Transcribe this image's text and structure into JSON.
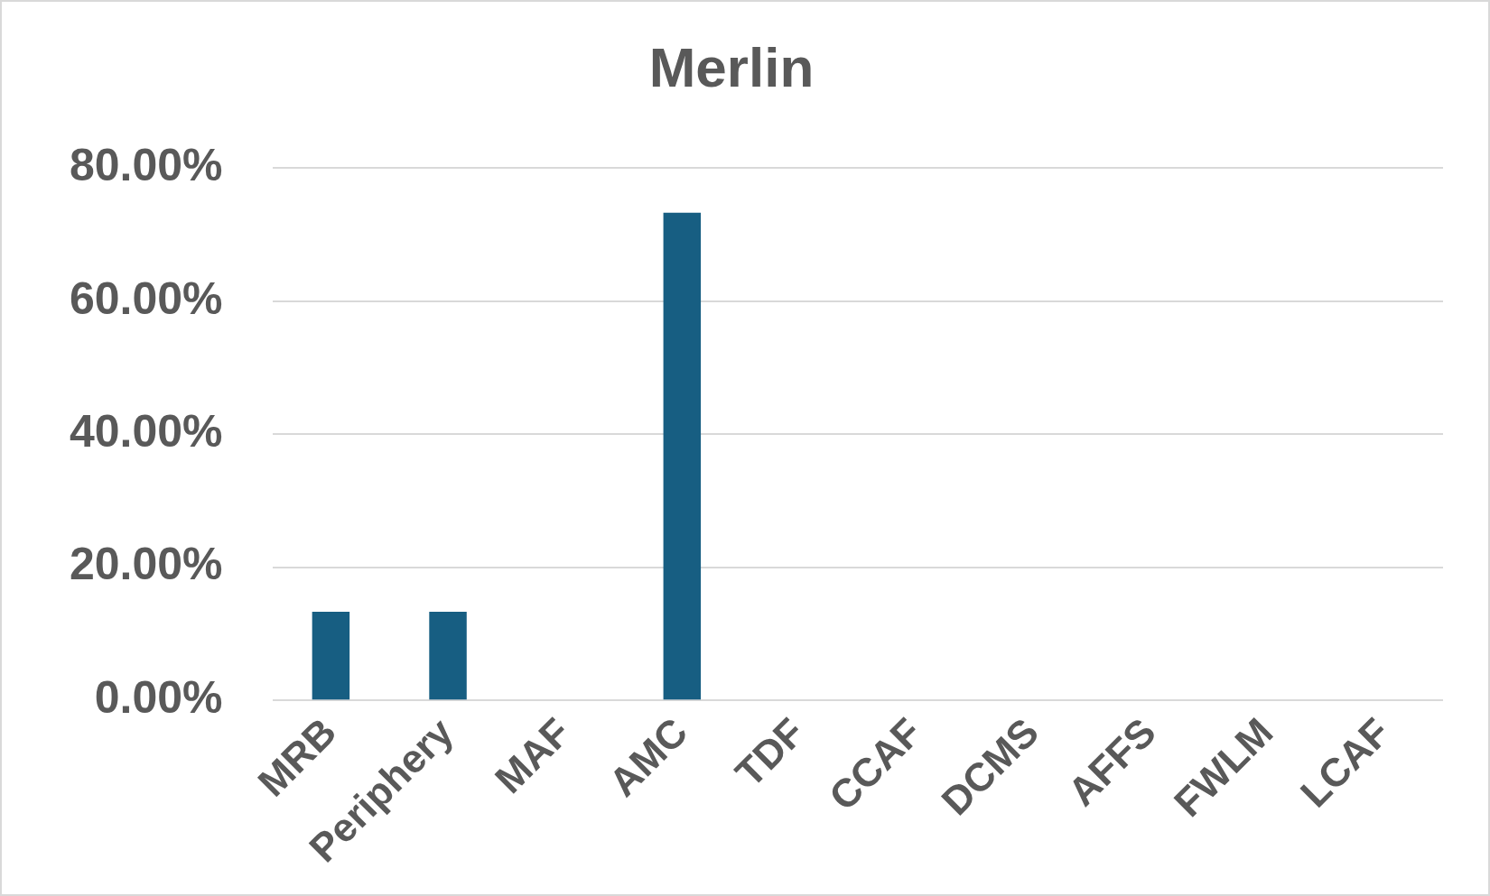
{
  "chart_data": {
    "type": "bar",
    "title": "Merlin",
    "categories": [
      "MRB",
      "Periphery",
      "MAF",
      "AMC",
      "TDF",
      "CCAF",
      "DCMS",
      "AFFS",
      "FWLM",
      "LCAF"
    ],
    "values": [
      13.3,
      13.3,
      0,
      73.3,
      0,
      0,
      0,
      0,
      0,
      0
    ],
    "color": "#175e82",
    "ylim": [
      0,
      80
    ],
    "yticks": [
      {
        "value": 0,
        "label": "0.00%"
      },
      {
        "value": 20,
        "label": "20.00%"
      },
      {
        "value": 40,
        "label": "40.00%"
      },
      {
        "value": 60,
        "label": "60.00%"
      },
      {
        "value": 80,
        "label": "80.00%"
      }
    ],
    "grid": "y",
    "legend": false
  }
}
